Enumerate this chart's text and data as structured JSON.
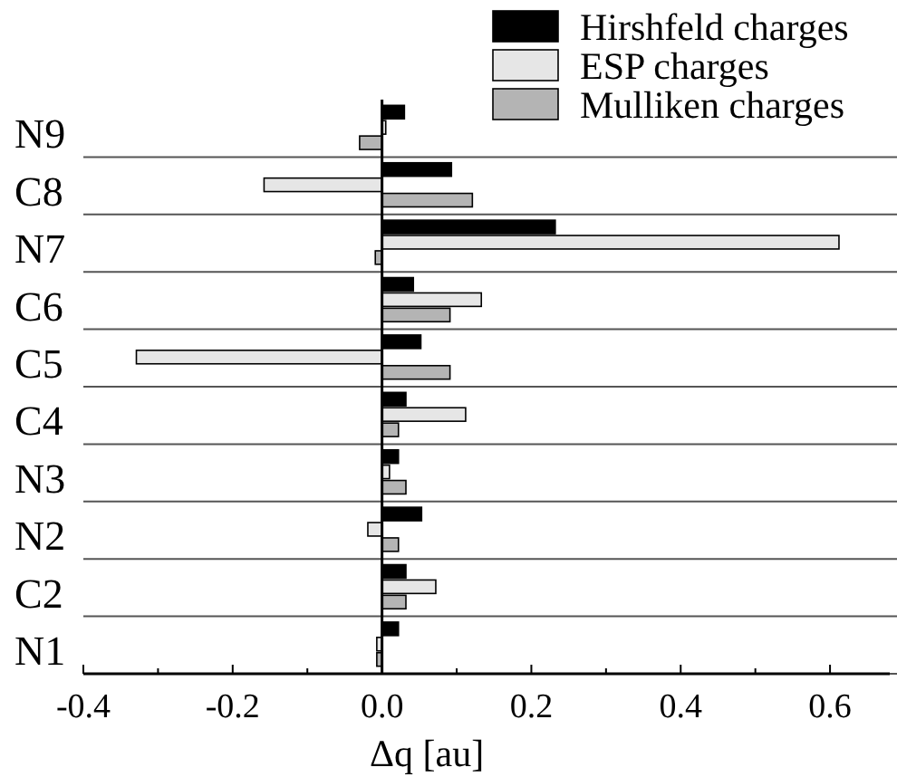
{
  "chart_data": {
    "type": "bar",
    "orientation": "horizontal",
    "xlabel": "Δq [au]",
    "categories": [
      "N9",
      "C8",
      "N7",
      "C6",
      "C5",
      "C4",
      "N3",
      "N2",
      "C2",
      "N1"
    ],
    "series": [
      {
        "name": "Hirshfeld charges",
        "color": "#000000",
        "values": [
          0.03,
          0.093,
          0.232,
          0.042,
          0.052,
          0.032,
          0.022,
          0.053,
          0.032,
          0.022
        ]
      },
      {
        "name": "ESP charges",
        "color": "#e6e6e6",
        "values": [
          0.005,
          -0.158,
          0.612,
          0.133,
          -0.329,
          0.112,
          0.01,
          -0.019,
          0.072,
          -0.007
        ]
      },
      {
        "name": "Mulliken charges",
        "color": "#b4b4b4",
        "values": [
          -0.03,
          0.121,
          -0.009,
          0.091,
          0.091,
          0.022,
          0.032,
          0.022,
          0.032,
          -0.007
        ]
      }
    ],
    "xlim": [
      -0.4,
      0.68
    ],
    "xticks": [
      -0.4,
      {
        "value": -0.3,
        "label": null
      },
      -0.2,
      {
        "value": -0.1,
        "label": null
      },
      {
        "value": 0,
        "label": "0.0"
      },
      {
        "value": 0.1,
        "label": null
      },
      0.2,
      {
        "value": 0.3,
        "label": null
      },
      0.4,
      {
        "value": 0.5,
        "label": null
      },
      0.6
    ],
    "grid": "y",
    "legend": "top right"
  }
}
